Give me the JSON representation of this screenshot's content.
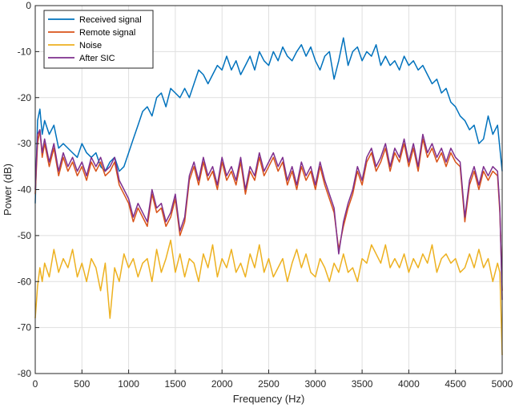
{
  "chart_data": {
    "type": "line",
    "xlabel": "Frequency (Hz)",
    "ylabel": "Power (dB)",
    "xlim": [
      0,
      5000
    ],
    "ylim": [
      -80,
      0
    ],
    "xticks": [
      0,
      500,
      1000,
      1500,
      2000,
      2500,
      3000,
      3500,
      4000,
      4500,
      5000
    ],
    "yticks": [
      0,
      -10,
      -20,
      -30,
      -40,
      -50,
      -60,
      -70,
      -80
    ],
    "grid": true,
    "legend_position": "top-left",
    "series": [
      {
        "name": "Received signal",
        "color": "#0072BD",
        "x": [
          0,
          25,
          50,
          75,
          100,
          150,
          200,
          250,
          300,
          350,
          400,
          450,
          500,
          550,
          600,
          650,
          700,
          750,
          800,
          850,
          900,
          950,
          1000,
          1050,
          1100,
          1150,
          1200,
          1250,
          1300,
          1350,
          1400,
          1450,
          1500,
          1550,
          1600,
          1650,
          1700,
          1750,
          1800,
          1850,
          1900,
          1950,
          2000,
          2050,
          2100,
          2150,
          2200,
          2250,
          2300,
          2350,
          2400,
          2450,
          2500,
          2550,
          2600,
          2650,
          2700,
          2750,
          2800,
          2850,
          2900,
          2950,
          3000,
          3050,
          3100,
          3150,
          3200,
          3250,
          3300,
          3350,
          3400,
          3450,
          3500,
          3550,
          3600,
          3650,
          3700,
          3750,
          3800,
          3850,
          3900,
          3950,
          4000,
          4050,
          4100,
          4150,
          4200,
          4250,
          4300,
          4350,
          4400,
          4450,
          4500,
          4550,
          4600,
          4650,
          4700,
          4750,
          4800,
          4850,
          4900,
          4950,
          4975,
          5000
        ],
        "values": [
          -43,
          -25,
          -22.5,
          -28,
          -25,
          -28,
          -26,
          -31,
          -30,
          -31,
          -32,
          -33,
          -30,
          -32,
          -33,
          -32,
          -35,
          -36,
          -34,
          -33,
          -36,
          -35,
          -32,
          -29,
          -26,
          -23,
          -22,
          -24,
          -20,
          -19,
          -22,
          -18,
          -19,
          -20,
          -18,
          -20,
          -17,
          -14,
          -15,
          -17,
          -15,
          -13,
          -14,
          -11,
          -14,
          -12,
          -15,
          -13,
          -11,
          -14,
          -10,
          -12,
          -13,
          -10,
          -12,
          -9,
          -11,
          -12,
          -10,
          -8.5,
          -11,
          -9,
          -12,
          -14,
          -11,
          -10,
          -16,
          -12,
          -7,
          -13,
          -10,
          -9,
          -12,
          -10,
          -11,
          -8.5,
          -13,
          -11,
          -13,
          -12,
          -14,
          -11,
          -13,
          -12,
          -14,
          -13,
          -15,
          -17,
          -16,
          -19,
          -18,
          -21,
          -22,
          -24,
          -25,
          -27,
          -26,
          -30,
          -29,
          -24,
          -28,
          -26,
          -31,
          -36
        ]
      },
      {
        "name": "Remote signal",
        "color": "#D95319",
        "x": [
          0,
          25,
          50,
          75,
          100,
          150,
          200,
          250,
          300,
          350,
          400,
          450,
          500,
          550,
          600,
          650,
          700,
          750,
          800,
          850,
          900,
          950,
          1000,
          1050,
          1100,
          1150,
          1200,
          1250,
          1300,
          1350,
          1400,
          1450,
          1500,
          1550,
          1600,
          1650,
          1700,
          1750,
          1800,
          1850,
          1900,
          1950,
          2000,
          2050,
          2100,
          2150,
          2200,
          2250,
          2300,
          2350,
          2400,
          2450,
          2500,
          2550,
          2600,
          2650,
          2700,
          2750,
          2800,
          2850,
          2900,
          2950,
          3000,
          3050,
          3100,
          3150,
          3200,
          3250,
          3300,
          3350,
          3400,
          3450,
          3500,
          3550,
          3600,
          3650,
          3700,
          3750,
          3800,
          3850,
          3900,
          3950,
          4000,
          4050,
          4100,
          4150,
          4200,
          4250,
          4300,
          4350,
          4400,
          4450,
          4500,
          4550,
          4600,
          4650,
          4700,
          4750,
          4800,
          4850,
          4900,
          4950,
          4975,
          5000
        ],
        "values": [
          -41,
          -30,
          -27,
          -33,
          -30,
          -35,
          -31,
          -37,
          -33,
          -36,
          -34,
          -37,
          -35,
          -38,
          -34,
          -36,
          -34,
          -37,
          -36,
          -34,
          -39,
          -41,
          -43,
          -47,
          -44,
          -46,
          -48,
          -41,
          -45,
          -44,
          -48,
          -46,
          -42,
          -50,
          -47,
          -38,
          -35,
          -39,
          -34,
          -38,
          -36,
          -40,
          -34,
          -38,
          -36,
          -39,
          -34,
          -41,
          -36,
          -38,
          -33,
          -37,
          -35,
          -33,
          -36,
          -34,
          -39,
          -36,
          -40,
          -35,
          -38,
          -36,
          -40,
          -35,
          -39,
          -42,
          -45,
          -53,
          -48,
          -44,
          -41,
          -36,
          -39,
          -34,
          -32,
          -36,
          -34,
          -31,
          -36,
          -32,
          -34,
          -30,
          -35,
          -31,
          -36,
          -29,
          -33,
          -31,
          -34,
          -32,
          -35,
          -32,
          -34,
          -35,
          -47,
          -39,
          -36,
          -40,
          -36,
          -38,
          -36,
          -37,
          -45,
          -62
        ]
      },
      {
        "name": "Noise",
        "color": "#EDB120",
        "x": [
          0,
          25,
          50,
          75,
          100,
          150,
          200,
          250,
          300,
          350,
          400,
          450,
          500,
          550,
          600,
          650,
          700,
          750,
          800,
          850,
          900,
          950,
          1000,
          1050,
          1100,
          1150,
          1200,
          1250,
          1300,
          1350,
          1400,
          1450,
          1500,
          1550,
          1600,
          1650,
          1700,
          1750,
          1800,
          1850,
          1900,
          1950,
          2000,
          2050,
          2100,
          2150,
          2200,
          2250,
          2300,
          2350,
          2400,
          2450,
          2500,
          2550,
          2600,
          2650,
          2700,
          2750,
          2800,
          2850,
          2900,
          2950,
          3000,
          3050,
          3100,
          3150,
          3200,
          3250,
          3300,
          3350,
          3400,
          3450,
          3500,
          3550,
          3600,
          3650,
          3700,
          3750,
          3800,
          3850,
          3900,
          3950,
          4000,
          4050,
          4100,
          4150,
          4200,
          4250,
          4300,
          4350,
          4400,
          4450,
          4500,
          4550,
          4600,
          4650,
          4700,
          4750,
          4800,
          4850,
          4900,
          4950,
          4975,
          5000
        ],
        "values": [
          -68,
          -61,
          -57,
          -60,
          -56,
          -59,
          -53,
          -58,
          -55,
          -57,
          -53,
          -59,
          -56,
          -60,
          -55,
          -57,
          -62,
          -56,
          -68,
          -57,
          -60,
          -54,
          -57,
          -55,
          -59,
          -56,
          -55,
          -60,
          -53,
          -58,
          -55,
          -51,
          -58,
          -54,
          -59,
          -55,
          -56,
          -60,
          -54,
          -57,
          -52,
          -59,
          -55,
          -57,
          -53,
          -58,
          -56,
          -59,
          -54,
          -57,
          -52,
          -58,
          -55,
          -59,
          -57,
          -55,
          -60,
          -56,
          -53,
          -57,
          -54,
          -58,
          -59,
          -55,
          -57,
          -60,
          -56,
          -58,
          -54,
          -58,
          -57,
          -60,
          -55,
          -56,
          -52,
          -54,
          -56,
          -52,
          -57,
          -55,
          -57,
          -54,
          -58,
          -55,
          -57,
          -54,
          -56,
          -52,
          -58,
          -55,
          -54,
          -56,
          -55,
          -58,
          -57,
          -54,
          -57,
          -53,
          -57,
          -55,
          -60,
          -56,
          -58,
          -76
        ]
      },
      {
        "name": "After SIC",
        "color": "#7E2F8E",
        "x": [
          0,
          25,
          50,
          75,
          100,
          150,
          200,
          250,
          300,
          350,
          400,
          450,
          500,
          550,
          600,
          650,
          700,
          750,
          800,
          850,
          900,
          950,
          1000,
          1050,
          1100,
          1150,
          1200,
          1250,
          1300,
          1350,
          1400,
          1450,
          1500,
          1550,
          1600,
          1650,
          1700,
          1750,
          1800,
          1850,
          1900,
          1950,
          2000,
          2050,
          2100,
          2150,
          2200,
          2250,
          2300,
          2350,
          2400,
          2450,
          2500,
          2550,
          2600,
          2650,
          2700,
          2750,
          2800,
          2850,
          2900,
          2950,
          3000,
          3050,
          3100,
          3150,
          3200,
          3250,
          3300,
          3350,
          3400,
          3450,
          3500,
          3550,
          3600,
          3650,
          3700,
          3750,
          3800,
          3850,
          3900,
          3950,
          4000,
          4050,
          4100,
          4150,
          4200,
          4250,
          4300,
          4350,
          4400,
          4450,
          4500,
          4550,
          4600,
          4650,
          4700,
          4750,
          4800,
          4850,
          4900,
          4950,
          4975,
          5000
        ],
        "values": [
          -40,
          -28,
          -27,
          -32,
          -29,
          -34,
          -30,
          -36,
          -32,
          -35,
          -33,
          -36,
          -34,
          -37,
          -33,
          -35,
          -33,
          -36,
          -35,
          -33,
          -38,
          -40,
          -42,
          -46,
          -43,
          -45,
          -47,
          -40,
          -44,
          -43,
          -47,
          -45,
          -41,
          -49,
          -46,
          -37,
          -34,
          -38,
          -33,
          -37,
          -35,
          -39,
          -33,
          -37,
          -35,
          -38,
          -33,
          -40,
          -35,
          -37,
          -32,
          -36,
          -34,
          -32,
          -35,
          -33,
          -38,
          -35,
          -39,
          -34,
          -37,
          -35,
          -39,
          -34,
          -38,
          -41,
          -44,
          -54,
          -47,
          -43,
          -40,
          -35,
          -38,
          -33,
          -31,
          -35,
          -33,
          -30,
          -35,
          -31,
          -33,
          -29,
          -34,
          -30,
          -35,
          -28,
          -32,
          -30,
          -33,
          -31,
          -34,
          -31,
          -33,
          -34,
          -46,
          -38,
          -35,
          -39,
          -35,
          -37,
          -35,
          -36,
          -44,
          -64
        ]
      }
    ]
  }
}
